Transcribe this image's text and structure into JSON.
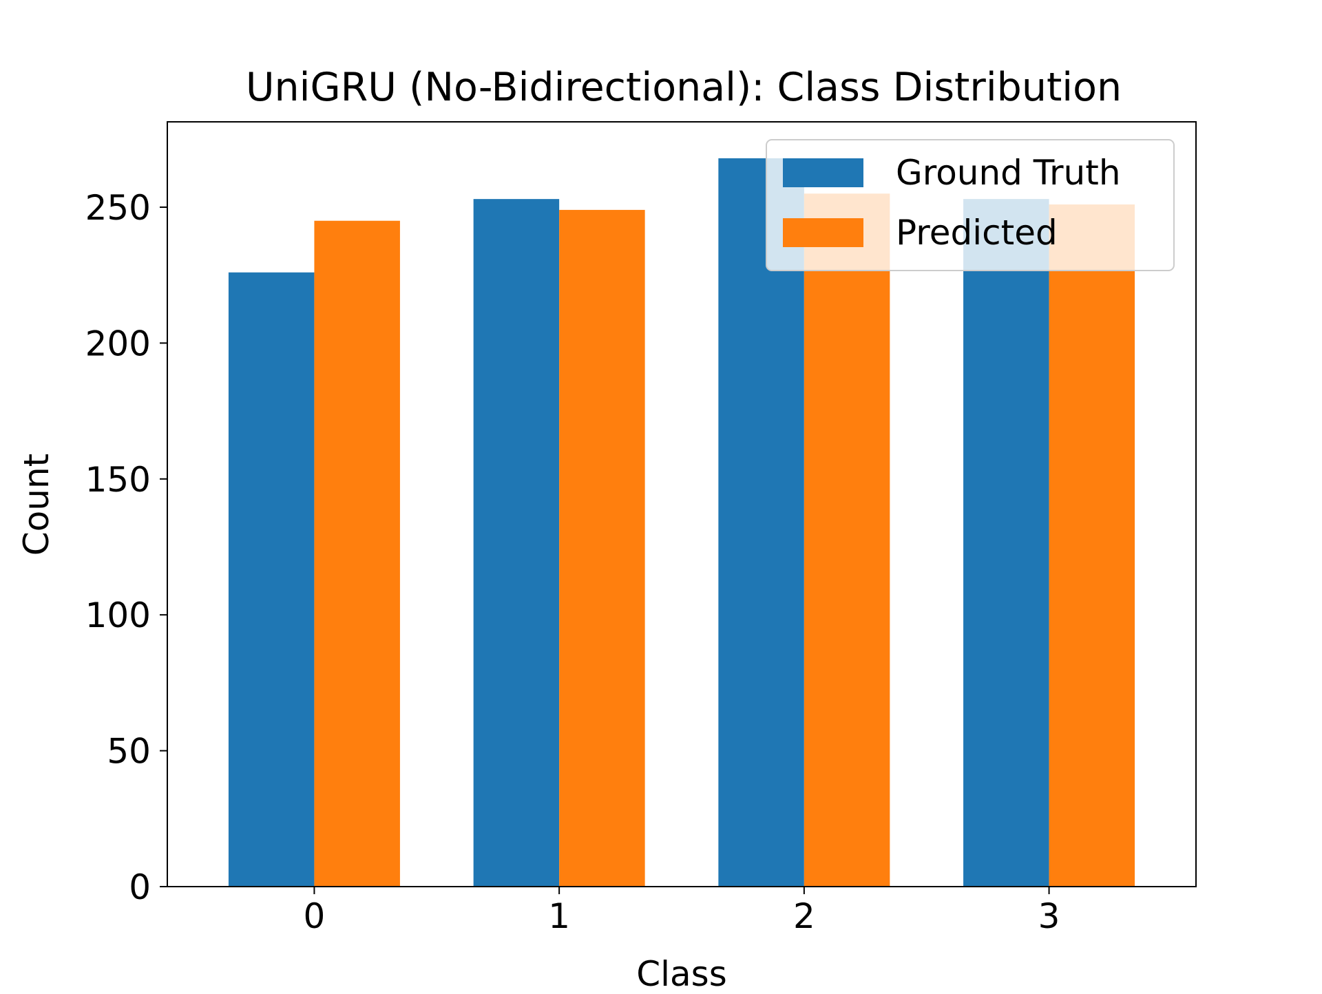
{
  "chart_data": {
    "type": "bar",
    "title": "UniGRU (No-Bidirectional): Class Distribution",
    "xlabel": "Class",
    "ylabel": "Count",
    "categories": [
      "0",
      "1",
      "2",
      "3"
    ],
    "series": [
      {
        "name": "Ground Truth",
        "color": "#1f77b4",
        "values": [
          226,
          253,
          268,
          253
        ]
      },
      {
        "name": "Predicted",
        "color": "#ff7f0e",
        "values": [
          245,
          249,
          255,
          251
        ]
      }
    ],
    "ylim": [
      0,
      281.4
    ],
    "yticks": [
      0,
      50,
      100,
      150,
      200,
      250
    ],
    "grid": false,
    "legend_position": "upper right"
  }
}
